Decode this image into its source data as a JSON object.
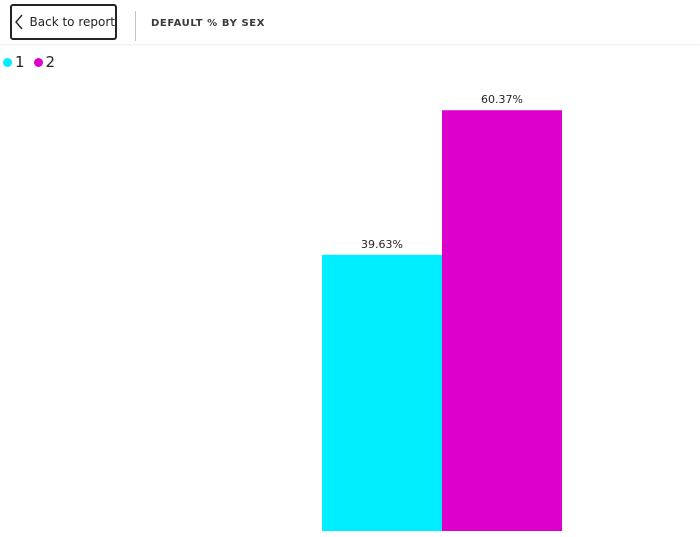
{
  "header": {
    "back_label": "Back to report",
    "title": "DEFAULT % BY SEX"
  },
  "legend": [
    {
      "label": "1",
      "color": "#00EEFF"
    },
    {
      "label": "2",
      "color": "#DD00CC"
    }
  ],
  "chart_data": {
    "type": "bar",
    "title": "DEFAULT % BY SEX",
    "categories": [
      "1",
      "2"
    ],
    "values": [
      39.63,
      60.37
    ],
    "data_labels": [
      "39.63%",
      "60.37%"
    ],
    "colors": [
      "#00EEFF",
      "#DD00CC"
    ],
    "ylim": [
      0,
      66
    ],
    "grid": false,
    "legend_position": "top-left",
    "xlabel": "",
    "ylabel": ""
  }
}
